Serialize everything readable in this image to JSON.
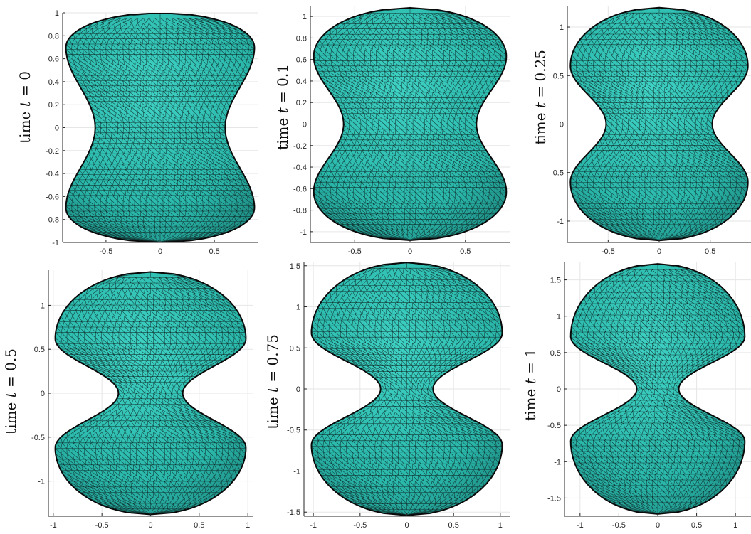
{
  "chart_data": [
    {
      "type": "surface-mesh",
      "ylabel_prefix": "time ",
      "ylabel_var": "t",
      "ylabel_eq": " = ",
      "time_value": "0",
      "xlim": [
        -0.9,
        0.9
      ],
      "ylim": [
        -1.0,
        1.0
      ],
      "xticks": [
        -0.5,
        0,
        0.5
      ],
      "xtick_labels": [
        "-0.5",
        "0",
        "0.5"
      ],
      "yticks": [
        -1,
        -0.8,
        -0.6,
        -0.4,
        -0.2,
        0,
        0.2,
        0.4,
        0.6,
        0.8,
        1
      ],
      "ytick_labels": [
        "-1",
        "-0.8",
        "-0.6",
        "-0.4",
        "-0.2",
        "0",
        "0.2",
        "0.4",
        "0.6",
        "0.8",
        "1"
      ],
      "shape": {
        "top": 1.0,
        "bottom": -1.0,
        "max_half_width": 0.87,
        "neck_half_width": 0.6,
        "top_lobe_center": 0.7,
        "bottom_lobe_center": -0.7
      }
    },
    {
      "type": "surface-mesh",
      "ylabel_prefix": "time ",
      "ylabel_var": "t",
      "ylabel_eq": " = ",
      "time_value": "0.1",
      "xlim": [
        -0.9,
        0.9
      ],
      "ylim": [
        -1.1,
        1.1
      ],
      "xticks": [
        -0.5,
        0,
        0.5
      ],
      "xtick_labels": [
        "-0.5",
        "0",
        "0.5"
      ],
      "yticks": [
        -1,
        -0.8,
        -0.6,
        -0.4,
        -0.2,
        0,
        0.2,
        0.4,
        0.6,
        0.8,
        1
      ],
      "ytick_labels": [
        "-1",
        "-0.8",
        "-0.6",
        "-0.4",
        "-0.2",
        "0",
        "0.2",
        "0.4",
        "0.6",
        "0.8",
        "1"
      ],
      "shape": {
        "top": 1.08,
        "bottom": -1.08,
        "max_half_width": 0.87,
        "neck_half_width": 0.6,
        "top_lobe_center": 0.63,
        "bottom_lobe_center": -0.63
      }
    },
    {
      "type": "surface-mesh",
      "ylabel_prefix": "time ",
      "ylabel_var": "t",
      "ylabel_eq": " = ",
      "time_value": "0.25",
      "xlim": [
        -0.9,
        0.9
      ],
      "ylim": [
        -1.22,
        1.22
      ],
      "xticks": [
        -0.5,
        0,
        0.5
      ],
      "xtick_labels": [
        "-0.5",
        "0",
        "0.5"
      ],
      "yticks": [
        -1,
        -0.5,
        0,
        0.5,
        1
      ],
      "ytick_labels": [
        "-1",
        "-0.5",
        "0",
        "0.5",
        "1"
      ],
      "shape": {
        "top": 1.2,
        "bottom": -1.2,
        "max_half_width": 0.87,
        "neck_half_width": 0.52,
        "top_lobe_center": 0.6,
        "bottom_lobe_center": -0.6
      }
    },
    {
      "type": "surface-mesh",
      "ylabel_prefix": "time ",
      "ylabel_var": "t",
      "ylabel_eq": " = ",
      "time_value": "0.5",
      "xlim": [
        -1.05,
        1.05
      ],
      "ylim": [
        -1.4,
        1.4
      ],
      "xticks": [
        -1,
        -0.5,
        0,
        0.5,
        1
      ],
      "xtick_labels": [
        "-1",
        "-0.5",
        "0",
        "0.5",
        "1"
      ],
      "yticks": [
        -1,
        -0.5,
        0,
        0.5,
        1
      ],
      "ytick_labels": [
        "-1",
        "-0.5",
        "0",
        "0.5",
        "1"
      ],
      "shape": {
        "top": 1.38,
        "bottom": -1.38,
        "max_half_width": 0.98,
        "neck_half_width": 0.33,
        "top_lobe_center": 0.62,
        "bottom_lobe_center": -0.62
      }
    },
    {
      "type": "surface-mesh",
      "ylabel_prefix": "time ",
      "ylabel_var": "t",
      "ylabel_eq": " = ",
      "time_value": "0.75",
      "xlim": [
        -1.1,
        1.1
      ],
      "ylim": [
        -1.55,
        1.55
      ],
      "xticks": [
        -1,
        -0.5,
        0,
        0.5,
        1
      ],
      "xtick_labels": [
        "-1",
        "-0.5",
        "0",
        "0.5",
        "1"
      ],
      "yticks": [
        -1.5,
        -1,
        -0.5,
        0,
        0.5,
        1,
        1.5
      ],
      "ytick_labels": [
        "-1.5",
        "-1",
        "-0.5",
        "0",
        "0.5",
        "1",
        "1.5"
      ],
      "shape": {
        "top": 1.54,
        "bottom": -1.54,
        "max_half_width": 1.02,
        "neck_half_width": 0.28,
        "top_lobe_center": 0.68,
        "bottom_lobe_center": -0.68
      }
    },
    {
      "type": "surface-mesh",
      "ylabel_prefix": "time ",
      "ylabel_var": "t",
      "ylabel_eq": " = ",
      "time_value": "1",
      "xlim": [
        -1.2,
        1.2
      ],
      "ylim": [
        -1.75,
        1.75
      ],
      "xticks": [
        -1,
        -0.5,
        0,
        0.5,
        1
      ],
      "xtick_labels": [
        "-1",
        "-0.5",
        "0",
        "0.5",
        "1"
      ],
      "yticks": [
        -1.5,
        -1,
        -0.5,
        0,
        0.5,
        1,
        1.5
      ],
      "ytick_labels": [
        "-1.5",
        "-1",
        "-0.5",
        "0",
        "0.5",
        "1",
        "1.5"
      ],
      "shape": {
        "top": 1.72,
        "bottom": -1.72,
        "max_half_width": 1.12,
        "neck_half_width": 0.27,
        "top_lobe_center": 0.72,
        "bottom_lobe_center": -0.72
      }
    }
  ],
  "colors": {
    "surface": "#2ab8ab",
    "surface_dark": "#1f8f86",
    "mesh": "#0d1f1d",
    "grid": "#e6e6e6",
    "axis": "#262626"
  }
}
